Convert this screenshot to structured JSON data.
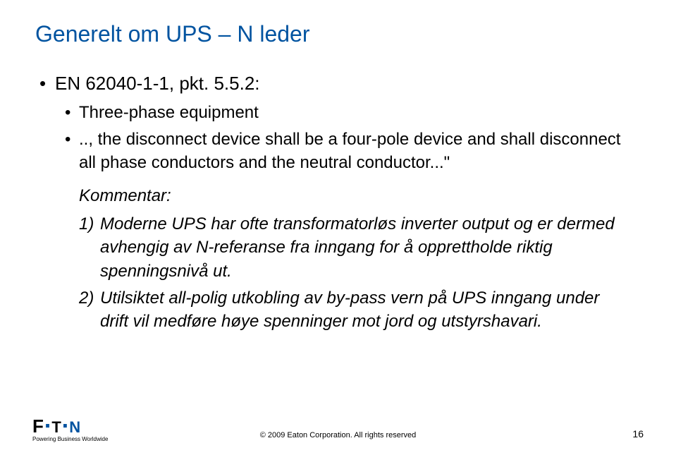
{
  "title": {
    "text": "Generelt om UPS – N leder",
    "color": "#0053a0"
  },
  "body": {
    "color": "#000000"
  },
  "bullet1": "EN 62040-1-1, pkt. 5.5.2:",
  "bullet2a": "Three-phase equipment",
  "bullet2b": ".., the disconnect device shall be a four-pole device and shall disconnect all phase conductors and the neutral conductor...\"",
  "kommentLabel": "Kommentar:",
  "k1_num": "1)",
  "k1_text": "Moderne UPS har ofte transformatorløs inverter output og er dermed avhengig av N-referanse fra inngang for å opprettholde riktig spenningsnivå ut.",
  "k2_num": "2)",
  "k2_text": "Utilsiktet all-polig utkobling av by-pass vern på UPS inngang under drift vil medføre høye spenninger mot jord og utstyrshavari.",
  "logo": {
    "text": "E•T•N",
    "colorBlack": "#000000",
    "colorBlue": "#0053a0"
  },
  "tagline": "Powering Business Worldwide",
  "copyright": "© 2009 Eaton Corporation. All rights reserved",
  "pageNum": "16"
}
